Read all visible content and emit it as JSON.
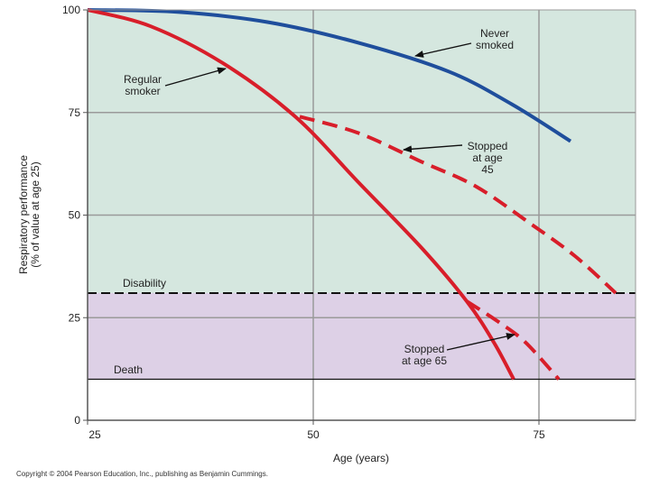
{
  "chart_data": {
    "type": "line",
    "xlabel": "Age (years)",
    "ylabel_line1": "Respiratory performance",
    "ylabel_line2": "(% of value at age 25)",
    "xlim": [
      25,
      85
    ],
    "ylim": [
      0,
      100
    ],
    "x_ticks": [
      25,
      50,
      75
    ],
    "y_ticks": [
      0,
      25,
      50,
      75,
      100
    ],
    "zones": [
      {
        "name": "Disability",
        "from": 31,
        "to": 100,
        "color": "#d5e7df"
      },
      {
        "name": "Death",
        "from": 10,
        "to": 31,
        "color": "#ddd0e6"
      }
    ],
    "thresholds": [
      {
        "label": "Disability",
        "y": 31,
        "style": "dashed"
      },
      {
        "label": "Death",
        "y": 10,
        "style": "solid"
      }
    ],
    "series": [
      {
        "name": "Never smoked",
        "color": "#1f4e9c",
        "dashed": false,
        "points": [
          [
            25,
            100
          ],
          [
            35,
            99.5
          ],
          [
            45,
            97
          ],
          [
            55,
            92
          ],
          [
            65,
            85
          ],
          [
            72,
            77
          ],
          [
            78.5,
            68
          ]
        ]
      },
      {
        "name": "Regular smoker",
        "color": "#d81e2a",
        "dashed": false,
        "points": [
          [
            25,
            100
          ],
          [
            32,
            96
          ],
          [
            40,
            87
          ],
          [
            48,
            74
          ],
          [
            55,
            58
          ],
          [
            62,
            42
          ],
          [
            67,
            29
          ],
          [
            70,
            19
          ],
          [
            72.2,
            10
          ]
        ]
      },
      {
        "name": "Stopped at age 45",
        "color": "#d81e2a",
        "dashed": true,
        "points": [
          [
            48.5,
            74
          ],
          [
            55,
            70
          ],
          [
            62,
            63
          ],
          [
            68,
            57
          ],
          [
            74,
            48
          ],
          [
            79,
            40
          ],
          [
            83.5,
            31
          ]
        ]
      },
      {
        "name": "Stopped at age 65",
        "color": "#d81e2a",
        "dashed": true,
        "points": [
          [
            67,
            29
          ],
          [
            70.5,
            24
          ],
          [
            73.5,
            19
          ],
          [
            77.2,
            10
          ]
        ]
      }
    ],
    "annotations": [
      {
        "name": "never",
        "lines": [
          "Never",
          "smoked"
        ]
      },
      {
        "name": "regular",
        "lines": [
          "Regular",
          "smoker"
        ]
      },
      {
        "name": "stop45",
        "lines": [
          "Stopped",
          "at age",
          "45"
        ]
      },
      {
        "name": "stop65",
        "lines": [
          "Stopped",
          "at age 65"
        ]
      }
    ],
    "zone_labels": {
      "disability": "Disability",
      "death": "Death"
    }
  },
  "colors": {
    "grid": "#9a9a9a",
    "axis": "#555555",
    "threshold": "#111111",
    "arrow": "#111111"
  },
  "copyright": "Copyright © 2004 Pearson Education, Inc., publishing as Benjamin Cummings."
}
